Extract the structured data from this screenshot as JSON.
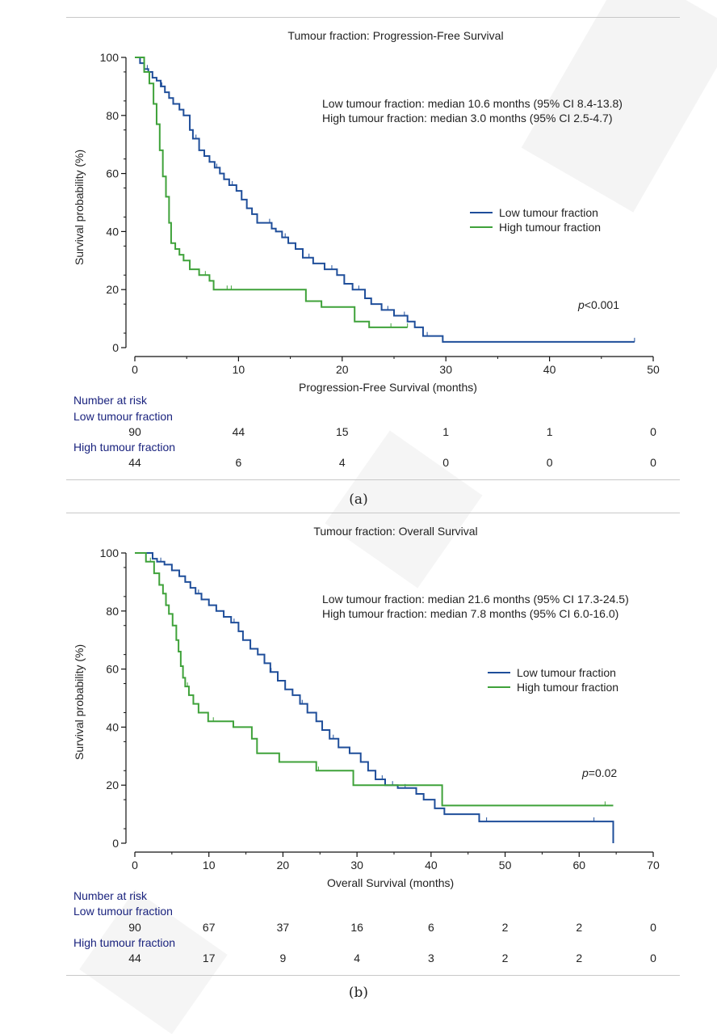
{
  "colors": {
    "low": "#1f4e9a",
    "high": "#3fa23a",
    "axis": "#111111"
  },
  "chart_data": [
    {
      "type": "line",
      "title": "Tumour fraction: Progression-Free Survival",
      "xlabel": "Progression-Free Survival (months)",
      "ylabel": "Survival probability (%)",
      "xlim": [
        0,
        50
      ],
      "ylim": [
        0,
        100
      ],
      "xticks": [
        0,
        10,
        20,
        30,
        40,
        50
      ],
      "yticks": [
        0,
        20,
        40,
        60,
        80,
        100
      ],
      "medians": [
        "Low tumour fraction: median 10.6 months (95% CI 8.4-13.8)",
        "High tumour fraction: median 3.0 months (95% CI 2.5-4.7)"
      ],
      "legend_position": "center-right",
      "p_label": "p",
      "p_value": "<0.001",
      "series": [
        {
          "name": "Low tumour fraction",
          "x": [
            0,
            0.5,
            0.9,
            1.3,
            1.7,
            2.1,
            2.5,
            2.9,
            3.3,
            3.7,
            4.3,
            4.7,
            5.3,
            5.6,
            6.2,
            6.7,
            7.2,
            7.7,
            8.2,
            8.6,
            9.1,
            9.8,
            10.3,
            10.8,
            11.3,
            11.8,
            12.5,
            13.2,
            13.6,
            14.2,
            14.8,
            15.5,
            16.2,
            17.2,
            18.3,
            19.5,
            20.2,
            21.0,
            22.2,
            22.8,
            23.8,
            25.0,
            26.3,
            27.0,
            27.8,
            29.7,
            48.2
          ],
          "y": [
            100,
            98,
            96,
            95,
            93,
            92,
            90,
            88,
            86,
            84,
            82,
            80,
            75,
            72,
            68,
            66,
            64,
            62,
            60,
            58,
            56,
            54,
            51,
            48,
            46,
            43,
            43,
            41,
            40,
            38,
            36,
            34,
            31,
            29,
            27,
            25,
            22,
            20,
            17,
            15,
            13,
            11,
            9,
            7,
            4,
            2,
            2
          ],
          "censor_x": [
            1.2,
            2.6,
            5.9,
            7.9,
            9.4,
            13.0,
            14.5,
            16.8,
            19.0,
            21.6,
            24.4,
            26.0,
            28.2,
            48.2
          ]
        },
        {
          "name": "High tumour fraction",
          "x": [
            0,
            0.9,
            1.4,
            1.8,
            2.1,
            2.4,
            2.7,
            3.0,
            3.3,
            3.5,
            3.9,
            4.3,
            4.7,
            5.3,
            6.2,
            7.2,
            7.6,
            8.2,
            16.5,
            18.0,
            21.2,
            22.6,
            26.3
          ],
          "y": [
            100,
            95,
            91,
            84,
            77,
            68,
            59,
            52,
            43,
            36,
            34,
            32,
            30,
            27,
            25,
            23,
            20,
            20,
            16,
            14,
            9,
            7,
            7
          ],
          "censor_x": [
            6.8,
            8.9,
            9.3,
            24.7,
            26.3
          ]
        }
      ],
      "risk_table": {
        "header": "Number at risk",
        "times": [
          0,
          10,
          20,
          30,
          40,
          50
        ],
        "groups": [
          {
            "name": "Low tumour fraction",
            "counts": [
              "90",
              "44",
              "15",
              "1",
              "1",
              "0"
            ]
          },
          {
            "name": "High tumour fraction",
            "counts": [
              "44",
              "6",
              "4",
              "0",
              "0",
              "0"
            ]
          }
        ]
      }
    },
    {
      "type": "line",
      "title": "Tumour fraction: Overall Survival",
      "xlabel": "Overall Survival (months)",
      "ylabel": "Survival probability (%)",
      "xlim": [
        0,
        70
      ],
      "ylim": [
        0,
        100
      ],
      "xticks": [
        0,
        10,
        20,
        30,
        40,
        50,
        60,
        70
      ],
      "yticks": [
        0,
        20,
        40,
        60,
        80,
        100
      ],
      "medians": [
        "Low tumour fraction: median 21.6 months (95% CI 17.3-24.5)",
        "High tumour fraction: median 7.8 months (95% CI 6.0-16.0)"
      ],
      "legend_position": "center-right",
      "p_label": "p",
      "p_value": "=0.02",
      "series": [
        {
          "name": "Low tumour fraction",
          "x": [
            0,
            2.4,
            3.0,
            4.0,
            5.0,
            6.0,
            6.8,
            7.5,
            8.2,
            9.0,
            10.0,
            11.0,
            12.0,
            13.0,
            14.0,
            14.6,
            15.6,
            16.6,
            17.5,
            18.3,
            19.3,
            20.3,
            21.3,
            22.3,
            23.3,
            24.5,
            25.3,
            26.3,
            27.5,
            29.0,
            30.5,
            31.5,
            32.5,
            33.8,
            35.5,
            38.0,
            39.0,
            40.5,
            41.8,
            46.5,
            64.6,
            64.6
          ],
          "y": [
            100,
            98,
            97,
            96,
            94,
            92,
            90,
            88,
            86,
            84,
            82,
            80,
            78,
            76,
            73,
            70,
            67,
            65,
            62,
            59,
            56,
            53,
            51,
            48,
            45,
            42,
            39,
            36,
            33,
            31,
            28,
            25,
            22,
            20,
            19,
            17,
            15,
            12,
            10,
            7.5,
            7.5,
            0
          ],
          "censor_x": [
            3.5,
            8.6,
            13.4,
            18.4,
            22.6,
            26.8,
            33.4,
            34.8,
            36.5,
            47.5,
            62.0
          ]
        },
        {
          "name": "High tumour fraction",
          "x": [
            0,
            1.5,
            2.6,
            3.3,
            3.8,
            4.2,
            4.6,
            5.1,
            5.6,
            5.9,
            6.2,
            6.5,
            6.8,
            7.3,
            7.9,
            8.6,
            9.9,
            13.3,
            15.8,
            16.5,
            19.5,
            24.5,
            29.5,
            41.5,
            64.6
          ],
          "y": [
            100,
            97,
            93,
            89,
            86,
            82,
            79,
            75,
            70,
            66,
            61,
            57,
            54,
            51,
            48,
            45,
            42,
            40,
            36,
            31,
            28,
            25,
            20,
            13,
            13
          ],
          "censor_x": [
            2.1,
            7.1,
            10.6,
            24.8,
            63.5
          ]
        }
      ],
      "risk_table": {
        "header": "Number at risk",
        "times": [
          0,
          10,
          20,
          30,
          40,
          50,
          60,
          70
        ],
        "groups": [
          {
            "name": "Low tumour fraction",
            "counts": [
              "90",
              "67",
              "37",
              "16",
              "6",
              "2",
              "2",
              "0"
            ]
          },
          {
            "name": "High tumour fraction",
            "counts": [
              "44",
              "17",
              "9",
              "4",
              "3",
              "2",
              "2",
              "0"
            ]
          }
        ]
      }
    }
  ],
  "captions": [
    "(a)",
    "(b)"
  ]
}
